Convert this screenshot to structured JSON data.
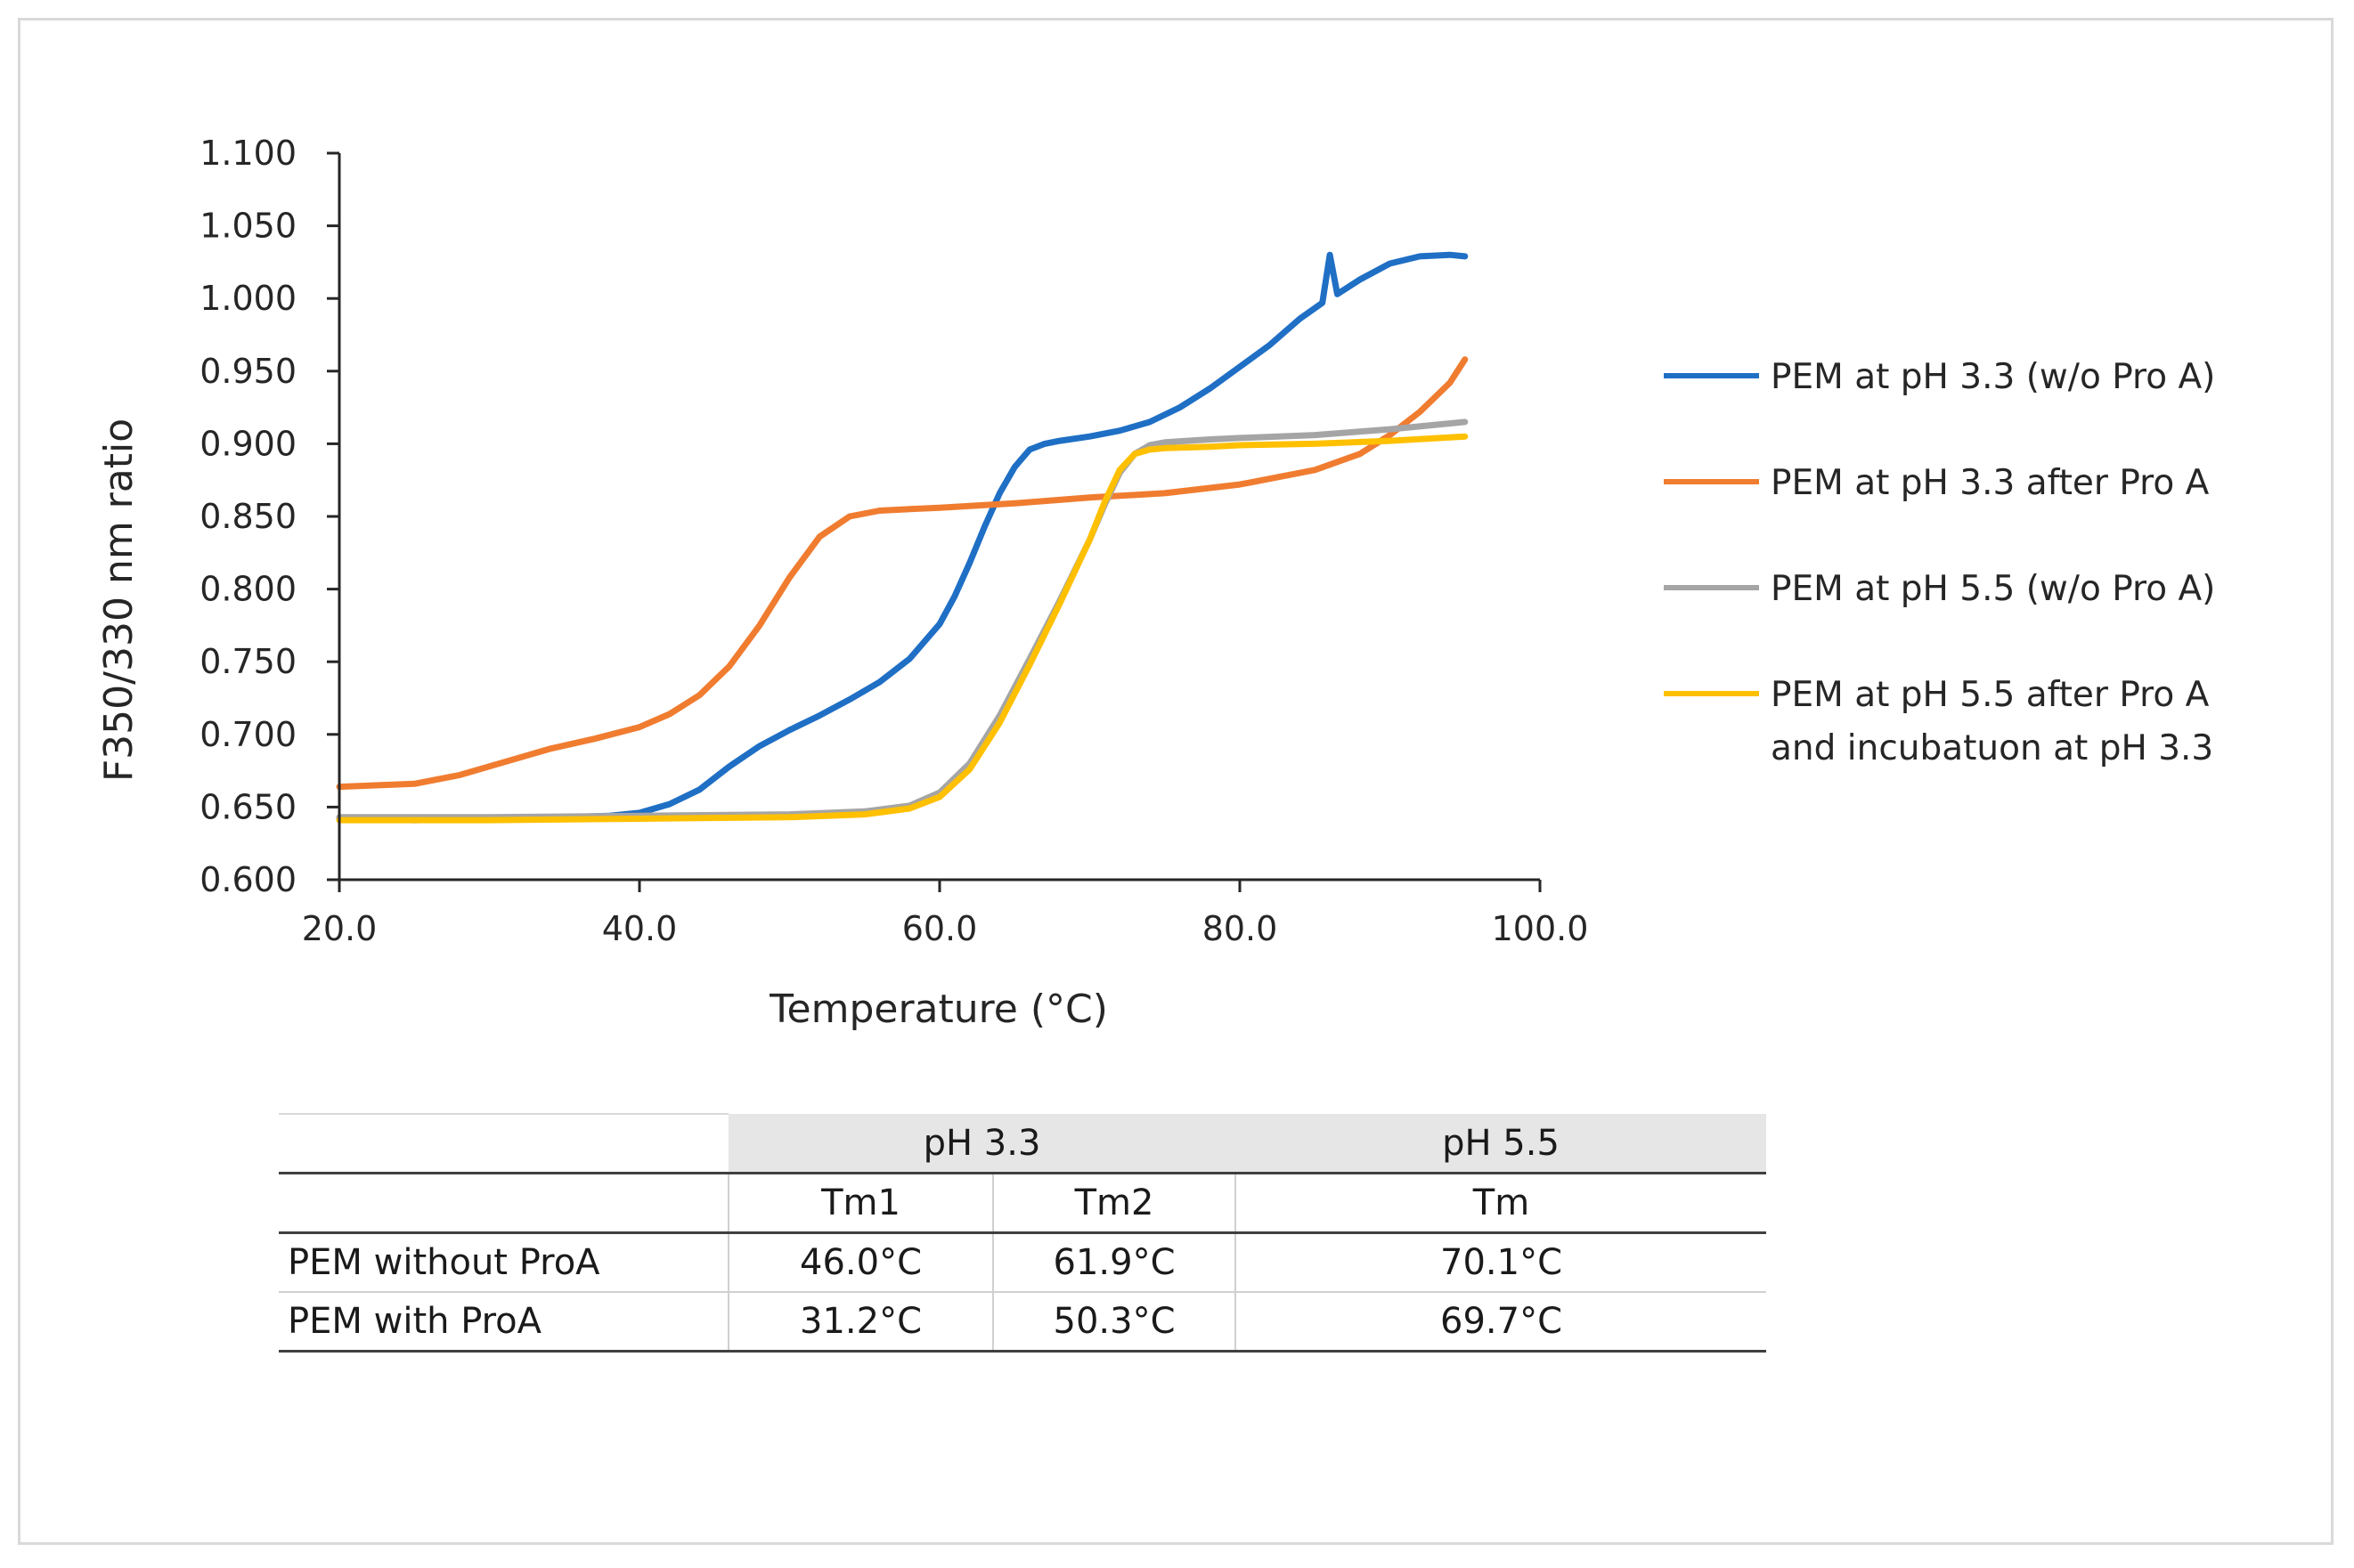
{
  "chart_data": {
    "type": "line",
    "xlabel": "Temperature (°C)",
    "ylabel": "F350/330 nm ratio",
    "xlim": [
      20,
      100
    ],
    "ylim": [
      0.6,
      1.1
    ],
    "x_ticks": [
      "20.0",
      "40.0",
      "60.0",
      "80.0",
      "100.0"
    ],
    "y_ticks": [
      "0.600",
      "0.650",
      "0.700",
      "0.750",
      "0.800",
      "0.850",
      "0.900",
      "0.950",
      "1.000",
      "1.050",
      "1.100"
    ],
    "legend_position": "right",
    "series": [
      {
        "name": "PEM at pH 3.3 (w/o Pro A)",
        "color": "#1f6fc5",
        "x": [
          20,
          25,
          30,
          35,
          38,
          40,
          42,
          44,
          46,
          48,
          50,
          52,
          54,
          56,
          58,
          60,
          61,
          62,
          63,
          64,
          65,
          66,
          67,
          68,
          70,
          72,
          74,
          76,
          78,
          80,
          82,
          84,
          85.5,
          86,
          86.5,
          88,
          90,
          92,
          94,
          95
        ],
        "y": [
          0.642,
          0.641,
          0.642,
          0.643,
          0.644,
          0.646,
          0.652,
          0.662,
          0.678,
          0.692,
          0.703,
          0.713,
          0.724,
          0.736,
          0.752,
          0.776,
          0.795,
          0.818,
          0.843,
          0.866,
          0.884,
          0.896,
          0.9,
          0.902,
          0.905,
          0.909,
          0.915,
          0.925,
          0.938,
          0.953,
          0.968,
          0.986,
          0.997,
          1.03,
          1.003,
          1.013,
          1.024,
          1.029,
          1.03,
          1.029
        ]
      },
      {
        "name": "PEM at pH 3.3 after Pro A",
        "color": "#f07c30",
        "x": [
          20,
          25,
          28,
          31,
          34,
          37,
          40,
          42,
          44,
          46,
          48,
          50,
          52,
          54,
          56,
          58,
          60,
          65,
          70,
          75,
          80,
          85,
          88,
          90,
          92,
          94,
          95
        ],
        "y": [
          0.664,
          0.666,
          0.672,
          0.681,
          0.69,
          0.697,
          0.705,
          0.714,
          0.727,
          0.747,
          0.775,
          0.808,
          0.836,
          0.85,
          0.854,
          0.855,
          0.856,
          0.859,
          0.863,
          0.866,
          0.872,
          0.882,
          0.893,
          0.906,
          0.922,
          0.942,
          0.958
        ]
      },
      {
        "name": "PEM at pH 5.5 (w/o Pro A)",
        "color": "#a5a5a5",
        "x": [
          20,
          30,
          40,
          50,
          55,
          58,
          60,
          62,
          64,
          66,
          68,
          70,
          71,
          72,
          73,
          74,
          75,
          78,
          80,
          85,
          90,
          95
        ],
        "y": [
          0.643,
          0.643,
          0.644,
          0.645,
          0.647,
          0.651,
          0.66,
          0.68,
          0.713,
          0.752,
          0.792,
          0.834,
          0.858,
          0.88,
          0.893,
          0.899,
          0.901,
          0.903,
          0.904,
          0.906,
          0.91,
          0.915
        ]
      },
      {
        "name": "PEM at pH 5.5 after Pro A and incubatuon at pH 3.3",
        "color": "#ffc000",
        "x": [
          20,
          30,
          40,
          50,
          55,
          58,
          60,
          62,
          64,
          66,
          68,
          70,
          71,
          72,
          73,
          74,
          75,
          78,
          80,
          85,
          90,
          95
        ],
        "y": [
          0.641,
          0.641,
          0.642,
          0.643,
          0.645,
          0.649,
          0.657,
          0.676,
          0.708,
          0.748,
          0.79,
          0.834,
          0.86,
          0.882,
          0.893,
          0.896,
          0.897,
          0.898,
          0.899,
          0.9,
          0.902,
          0.905
        ]
      }
    ],
    "legend": {
      "item1": "PEM at pH 3.3 (w/o Pro A)",
      "item2": "PEM at pH 3.3 after Pro A",
      "item3": "PEM at pH 5.5 (w/o Pro A)",
      "item4_line1": "PEM at pH 5.5 after Pro A",
      "item4_line2": "and incubatuon at pH 3.3"
    }
  },
  "table": {
    "group_headers": [
      "pH 3.3",
      "pH 5.5"
    ],
    "sub_headers": [
      "Tm1",
      "Tm2",
      "Tm"
    ],
    "rows": [
      {
        "label": "PEM without ProA",
        "tm1": "46.0°C",
        "tm2": "61.9°C",
        "tm": "70.1°C"
      },
      {
        "label": "PEM with ProA",
        "tm1": "31.2°C",
        "tm2": "50.3°C",
        "tm": "69.7°C"
      }
    ]
  }
}
